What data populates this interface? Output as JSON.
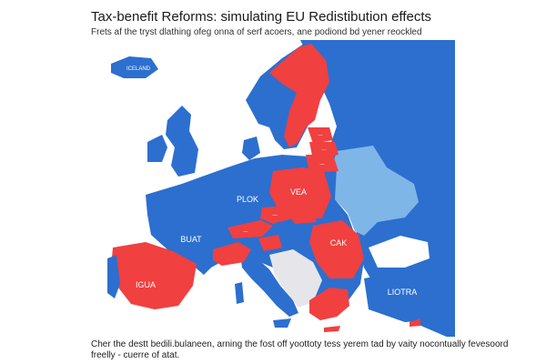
{
  "title": "Tax-benefit Reforms: simulating EU Redistibution effects",
  "subtitle": "Frets af the tryst dlathing ofeg onna of serf acoers, ane podiond bd yener reockled",
  "map": {
    "colors": {
      "sea": "#ffffff",
      "base": "#2c6fcf",
      "highlight": "#f04040",
      "light": "#7fb6e8",
      "neutral": "#e6e6ea"
    },
    "labels": {
      "iceland": "ICELAND",
      "west": "BUAT",
      "center": "PLOK",
      "north_east": "VEA",
      "south_east": "CAK",
      "iberia": "IGUA",
      "east": "LIOTRA",
      "baltic_1": "—",
      "baltic_2": "—",
      "baltic_3": "—",
      "central_1": "—",
      "central_2": "—"
    }
  },
  "caption": {
    "line1": "Cher the destt bedili.bulaneen, arning the fost off yoottoty tess yerem tad by vaity nocontually fevesoord",
    "line2": "freelly - cuerre of atat."
  }
}
